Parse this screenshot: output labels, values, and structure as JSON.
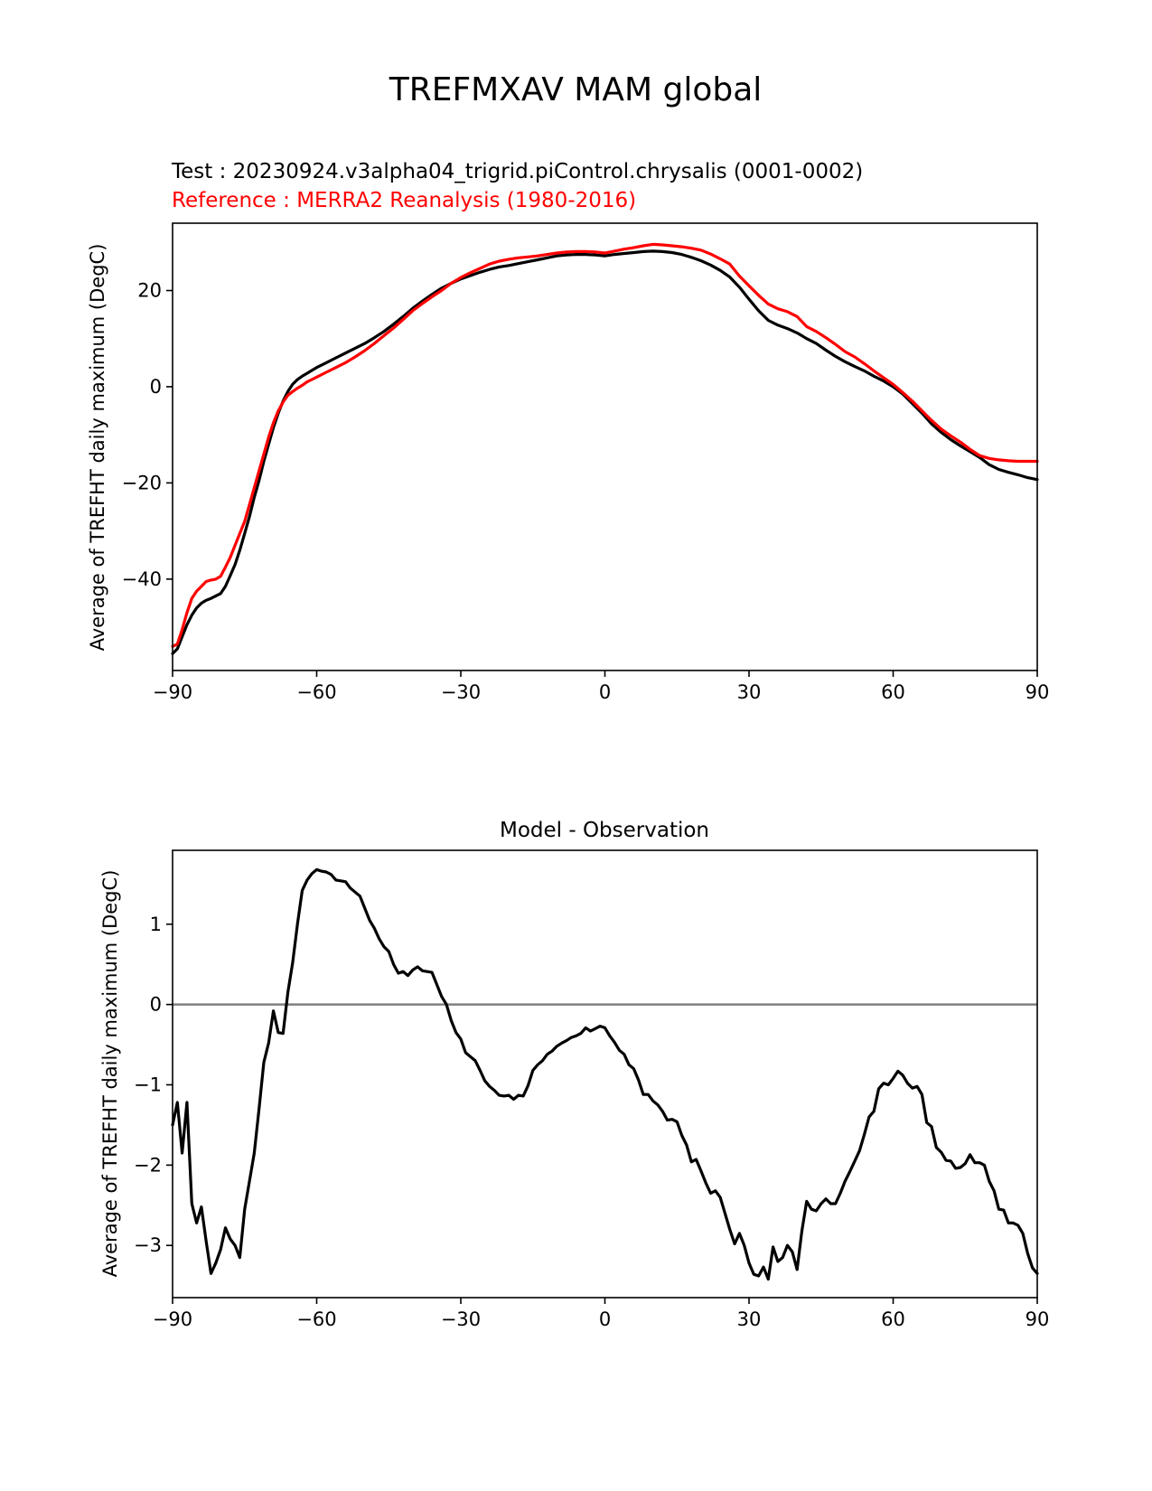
{
  "figure": {
    "suptitle": "TREFMXAV MAM global"
  },
  "chart_data": [
    {
      "type": "line",
      "title_test": "Test : 20230924.v3alpha04_trigrid.piControl.chrysalis (0001-0002)",
      "title_ref": "Reference : MERRA2 Reanalysis (1980-2016)",
      "xlabel": "",
      "ylabel": "Average of TREFHT daily maximum (DegC)",
      "xlim": [
        -90,
        90
      ],
      "ylim": [
        -59,
        34
      ],
      "xticks": [
        -90,
        -60,
        -30,
        0,
        30,
        60,
        90
      ],
      "xtick_labels": [
        "−90",
        "−60",
        "−30",
        "0",
        "30",
        "60",
        "90"
      ],
      "yticks": [
        -40,
        -20,
        0,
        20
      ],
      "ytick_labels": [
        "−40",
        "−20",
        "0",
        "20"
      ],
      "grid": false,
      "series": [
        {
          "color": "#000000",
          "x": [
            -90,
            -89,
            -88,
            -87,
            -86,
            -85,
            -84,
            -83,
            -82,
            -80,
            -79,
            -78,
            -77,
            -76,
            -75,
            -74,
            -73,
            -72,
            -71,
            -70,
            -69,
            -68,
            -67,
            -66,
            -65,
            -64,
            -63,
            -62,
            -61,
            -60,
            -58,
            -56,
            -54,
            -52,
            -50,
            -48,
            -46,
            -44,
            -42,
            -40,
            -38,
            -36,
            -34,
            -32,
            -30,
            -28,
            -26,
            -24,
            -22,
            -20,
            -18,
            -16,
            -14,
            -12,
            -10,
            -8,
            -6,
            -4,
            -2,
            0,
            2,
            4,
            6,
            8,
            10,
            12,
            14,
            16,
            18,
            20,
            22,
            24,
            26,
            28,
            30,
            32,
            34,
            36,
            38,
            40,
            42,
            44,
            46,
            48,
            50,
            52,
            54,
            56,
            58,
            60,
            62,
            64,
            66,
            68,
            70,
            72,
            74,
            76,
            78,
            80,
            82,
            84,
            86,
            88,
            90
          ],
          "y": [
            -55.5,
            -54.5,
            -52,
            -49.5,
            -47.5,
            -46,
            -45,
            -44.4,
            -44,
            -43,
            -41.5,
            -39.3,
            -37,
            -34,
            -30.5,
            -27,
            -23,
            -19.5,
            -15.5,
            -12,
            -8.5,
            -5.5,
            -3,
            -1,
            0.5,
            1.5,
            2.2,
            2.8,
            3.4,
            4,
            5,
            6,
            7,
            8,
            9,
            10.2,
            11.5,
            13,
            14.6,
            16.3,
            17.8,
            19.2,
            20.5,
            21.5,
            22.4,
            23.1,
            23.8,
            24.4,
            24.9,
            25.2,
            25.6,
            26,
            26.4,
            26.8,
            27.2,
            27.4,
            27.5,
            27.5,
            27.4,
            27.2,
            27.5,
            27.7,
            27.9,
            28.1,
            28.2,
            28.1,
            27.9,
            27.5,
            26.9,
            26.2,
            25.3,
            24.2,
            22.8,
            20.7,
            18.2,
            15.8,
            13.8,
            12.8,
            12.1,
            11.2,
            10,
            9,
            7.6,
            6.3,
            5.2,
            4.2,
            3.3,
            2.2,
            1.2,
            0,
            -1.5,
            -3.5,
            -5.5,
            -7.7,
            -9.5,
            -11,
            -12.3,
            -13.5,
            -14.7,
            -16.2,
            -17.2,
            -17.8,
            -18.3,
            -18.9,
            -19.3
          ]
        },
        {
          "color": "#ff0000",
          "x": [
            -90,
            -89,
            -88,
            -87,
            -86,
            -85,
            -84,
            -83,
            -82,
            -81,
            -80,
            -79,
            -78,
            -77,
            -76,
            -75,
            -74,
            -73,
            -72,
            -71,
            -70,
            -69,
            -68,
            -67,
            -66,
            -65,
            -64,
            -63,
            -62,
            -61,
            -60,
            -58,
            -56,
            -54,
            -52,
            -50,
            -48,
            -46,
            -44,
            -42,
            -40,
            -38,
            -36,
            -34,
            -32,
            -30,
            -28,
            -26,
            -24,
            -22,
            -20,
            -18,
            -16,
            -14,
            -12,
            -10,
            -8,
            -6,
            -4,
            -2,
            0,
            2,
            4,
            6,
            8,
            10,
            12,
            14,
            16,
            18,
            20,
            22,
            24,
            26,
            28,
            30,
            32,
            34,
            36,
            38,
            40,
            42,
            44,
            46,
            48,
            50,
            52,
            54,
            56,
            58,
            60,
            62,
            64,
            66,
            68,
            70,
            72,
            74,
            76,
            78,
            80,
            82,
            84,
            86,
            88,
            90
          ],
          "y": [
            -54,
            -53.5,
            -50.5,
            -47,
            -44,
            -42.5,
            -41.5,
            -40.5,
            -40.2,
            -40,
            -39.4,
            -37.5,
            -35.5,
            -33,
            -30.5,
            -28,
            -24.5,
            -21,
            -17.5,
            -14,
            -10.5,
            -7.5,
            -5,
            -3.2,
            -1.8,
            -1,
            -0.3,
            0.3,
            1,
            1.5,
            2,
            3,
            4,
            5,
            6.2,
            7.5,
            9,
            10.6,
            12.2,
            14,
            15.8,
            17.3,
            18.7,
            20,
            21.5,
            22.7,
            23.7,
            24.6,
            25.5,
            26.1,
            26.5,
            26.8,
            27,
            27.2,
            27.5,
            27.8,
            28,
            28.1,
            28.1,
            28,
            27.8,
            28.2,
            28.6,
            28.9,
            29.3,
            29.6,
            29.5,
            29.3,
            29.1,
            28.8,
            28.4,
            27.6,
            26.6,
            25.5,
            23,
            21,
            19,
            17.2,
            16.2,
            15.6,
            14.6,
            12.5,
            11.5,
            10.2,
            8.8,
            7.3,
            6.2,
            4.8,
            3.3,
            1.9,
            0.5,
            -1.2,
            -3,
            -5,
            -7,
            -8.8,
            -10.2,
            -11.5,
            -13,
            -14.3,
            -14.9,
            -15.2,
            -15.4,
            -15.5,
            -15.5,
            -15.5
          ]
        }
      ]
    },
    {
      "type": "line",
      "title": "Model - Observation",
      "xlabel": "",
      "ylabel": "Average of TREFHT daily maximum (DegC)",
      "xlim": [
        -90,
        90
      ],
      "ylim": [
        -3.65,
        1.92
      ],
      "xticks": [
        -90,
        -60,
        -30,
        0,
        30,
        60,
        90
      ],
      "xtick_labels": [
        "−90",
        "−60",
        "−30",
        "0",
        "30",
        "60",
        "90"
      ],
      "yticks": [
        -3,
        -2,
        -1,
        0,
        1
      ],
      "ytick_labels": [
        "−3",
        "−2",
        "−1",
        "0",
        "1"
      ],
      "grid": false,
      "zero_line": {
        "y": 0,
        "color": "#808080"
      },
      "series": [
        {
          "color": "#000000",
          "x": [
            -90,
            -89,
            -88,
            -87,
            -86,
            -85,
            -84,
            -83,
            -82,
            -81,
            -80,
            -79,
            -78,
            -77,
            -76,
            -75,
            -74,
            -73,
            -72,
            -71,
            -70,
            -69,
            -68,
            -67,
            -66,
            -65,
            -64,
            -63,
            -62,
            -61,
            -60,
            -59,
            -58,
            -57,
            -56,
            -55,
            -54,
            -53,
            -52,
            -51,
            -50,
            -49,
            -48,
            -47,
            -46,
            -45,
            -44,
            -43,
            -42,
            -41,
            -40,
            -39,
            -38,
            -37,
            -36,
            -35,
            -34,
            -33,
            -32,
            -31,
            -30,
            -29,
            -28,
            -27,
            -26,
            -25,
            -24,
            -23,
            -22,
            -21,
            -20,
            -19,
            -18,
            -17,
            -16,
            -15,
            -14,
            -13,
            -12,
            -11,
            -10,
            -9,
            -8,
            -7,
            -6,
            -5,
            -4,
            -3,
            -2,
            -1,
            0,
            1,
            2,
            3,
            4,
            5,
            6,
            7,
            8,
            9,
            10,
            11,
            12,
            13,
            14,
            15,
            16,
            17,
            18,
            19,
            20,
            21,
            22,
            23,
            24,
            25,
            26,
            27,
            28,
            29,
            30,
            31,
            32,
            33,
            34,
            35,
            36,
            37,
            38,
            39,
            40,
            41,
            42,
            43,
            44,
            45,
            46,
            47,
            48,
            49,
            50,
            51,
            52,
            53,
            54,
            55,
            56,
            57,
            58,
            59,
            60,
            61,
            62,
            63,
            64,
            65,
            66,
            67,
            68,
            69,
            70,
            71,
            72,
            73,
            74,
            75,
            76,
            77,
            78,
            79,
            80,
            81,
            82,
            83,
            84,
            85,
            86,
            87,
            88,
            89,
            90
          ],
          "y": [
            -1.5,
            -1.22,
            -1.85,
            -1.22,
            -2.48,
            -2.72,
            -2.52,
            -2.95,
            -3.35,
            -3.22,
            -3.05,
            -2.78,
            -2.92,
            -3.0,
            -3.15,
            -2.55,
            -2.2,
            -1.85,
            -1.3,
            -0.72,
            -0.48,
            -0.08,
            -0.35,
            -0.36,
            0.15,
            0.52,
            1.0,
            1.42,
            1.55,
            1.63,
            1.68,
            1.66,
            1.65,
            1.62,
            1.55,
            1.54,
            1.53,
            1.45,
            1.4,
            1.35,
            1.2,
            1.05,
            0.95,
            0.82,
            0.72,
            0.66,
            0.5,
            0.39,
            0.41,
            0.36,
            0.43,
            0.47,
            0.42,
            0.41,
            0.4,
            0.25,
            0.1,
            0.0,
            -0.2,
            -0.35,
            -0.43,
            -0.6,
            -0.65,
            -0.7,
            -0.82,
            -0.95,
            -1.02,
            -1.07,
            -1.13,
            -1.14,
            -1.13,
            -1.18,
            -1.13,
            -1.14,
            -1.01,
            -0.82,
            -0.75,
            -0.7,
            -0.62,
            -0.58,
            -0.52,
            -0.48,
            -0.45,
            -0.41,
            -0.39,
            -0.36,
            -0.29,
            -0.33,
            -0.3,
            -0.27,
            -0.29,
            -0.39,
            -0.47,
            -0.57,
            -0.62,
            -0.75,
            -0.8,
            -0.94,
            -1.12,
            -1.12,
            -1.2,
            -1.25,
            -1.33,
            -1.44,
            -1.43,
            -1.46,
            -1.63,
            -1.75,
            -1.96,
            -1.93,
            -2.07,
            -2.22,
            -2.35,
            -2.32,
            -2.4,
            -2.6,
            -2.8,
            -2.98,
            -2.85,
            -3.0,
            -3.22,
            -3.36,
            -3.38,
            -3.27,
            -3.42,
            -3.02,
            -3.2,
            -3.15,
            -3.0,
            -3.08,
            -3.3,
            -2.82,
            -2.45,
            -2.55,
            -2.57,
            -2.48,
            -2.42,
            -2.48,
            -2.48,
            -2.35,
            -2.2,
            -2.08,
            -1.95,
            -1.82,
            -1.62,
            -1.4,
            -1.33,
            -1.05,
            -0.98,
            -1.0,
            -0.92,
            -0.83,
            -0.88,
            -0.98,
            -1.04,
            -1.02,
            -1.12,
            -1.47,
            -1.52,
            -1.78,
            -1.84,
            -1.94,
            -1.95,
            -2.04,
            -2.03,
            -1.98,
            -1.87,
            -1.97,
            -1.97,
            -2.0,
            -2.2,
            -2.32,
            -2.55,
            -2.56,
            -2.72,
            -2.72,
            -2.75,
            -2.85,
            -3.1,
            -3.28,
            -3.35
          ]
        }
      ]
    }
  ]
}
